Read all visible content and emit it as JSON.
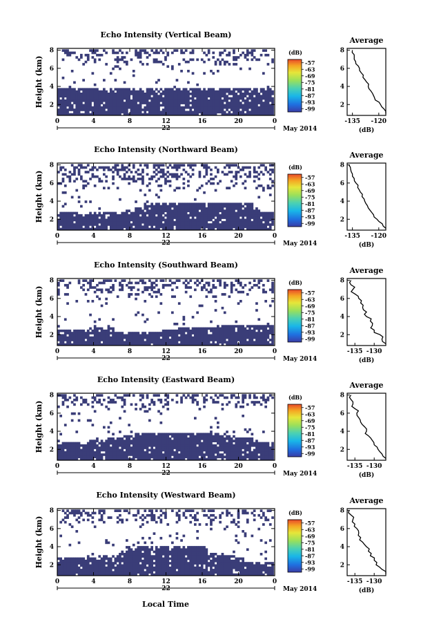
{
  "figure": {
    "xlabel": "Local Time",
    "date_label": "May 2014",
    "day_label": "22",
    "cbar_unit": "(dB)",
    "avg_title": "Average",
    "avg_xlabel": "(dB)"
  },
  "colors": {
    "echo": "#3a3d78",
    "background": "#ffffff",
    "colormap": [
      "#3a3da6",
      "#1f6fe0",
      "#19b6e8",
      "#4bd1b3",
      "#9be05a",
      "#e6e63a",
      "#f5a623",
      "#e84a2a"
    ]
  },
  "chart_data": [
    {
      "type": "heatmap",
      "title": "Echo Intensity (Vertical Beam)",
      "ylabel": "Height (km)",
      "xticks": [
        "0",
        "4",
        "8",
        "12",
        "16",
        "20",
        "0"
      ],
      "yticks": [
        "2",
        "4",
        "6",
        "8"
      ],
      "x_range_hours": [
        0,
        24
      ],
      "y_range_km": [
        0.8,
        8.2
      ],
      "colorbar_ticks": [
        "-57",
        "-63",
        "-69",
        "-75",
        "-81",
        "-87",
        "-93",
        "-99"
      ],
      "colorbar_range_db": [
        -102,
        -54
      ],
      "base_top_km": [
        3.9,
        3.9,
        3.9,
        3.9,
        3.9,
        3.9,
        3.9,
        3.9,
        3.9,
        3.9,
        3.9,
        3.9,
        3.9,
        3.9,
        3.9,
        3.9,
        3.9,
        3.9,
        3.9,
        3.9,
        3.9,
        3.9,
        3.9,
        3.9,
        3.9
      ],
      "upper_km": [
        6.3,
        8.2
      ],
      "average_profile": {
        "title": "Average",
        "xlabel": "(dB)",
        "xticks": [
          "-135",
          "-120"
        ],
        "yticks": [
          "2",
          "4",
          "6",
          "8"
        ],
        "x_range_db": [
          -138,
          -116
        ],
        "height_km": [
          1.0,
          1.5,
          2.0,
          2.5,
          3.0,
          3.5,
          4.0,
          4.5,
          5.0,
          5.5,
          6.0,
          6.5,
          7.0,
          7.5,
          8.0
        ],
        "value_db": [
          -116,
          -117,
          -119,
          -122,
          -123,
          -124.5,
          -126,
          -127,
          -129,
          -130,
          -131,
          -133,
          -134,
          -134,
          -135
        ]
      }
    },
    {
      "type": "heatmap",
      "title": "Echo Intensity (Northward Beam)",
      "ylabel": "Height (km)",
      "xticks": [
        "0",
        "4",
        "8",
        "12",
        "16",
        "20",
        "0"
      ],
      "yticks": [
        "2",
        "4",
        "6",
        "8"
      ],
      "x_range_hours": [
        0,
        24
      ],
      "y_range_km": [
        0.8,
        8.2
      ],
      "colorbar_ticks": [
        "-57",
        "-63",
        "-69",
        "-75",
        "-81",
        "-87",
        "-93",
        "-99"
      ],
      "colorbar_range_db": [
        -102,
        -54
      ],
      "base_top_km": [
        2.8,
        2.8,
        2.8,
        2.6,
        2.7,
        2.8,
        2.8,
        2.9,
        3.1,
        3.3,
        3.8,
        3.9,
        3.9,
        3.9,
        3.9,
        3.9,
        3.9,
        3.9,
        3.9,
        3.9,
        3.9,
        3.8,
        3.0,
        2.8,
        2.8
      ],
      "upper_km": [
        5.2,
        8.2
      ],
      "average_profile": {
        "title": "Average",
        "xlabel": "(dB)",
        "xticks": [
          "-135",
          "-120"
        ],
        "yticks": [
          "2",
          "4",
          "6",
          "8"
        ],
        "x_range_db": [
          -138,
          -116
        ],
        "height_km": [
          1.0,
          1.5,
          2.0,
          2.5,
          3.0,
          3.5,
          4.0,
          4.5,
          5.0,
          5.5,
          6.0,
          6.5,
          7.0,
          7.5,
          8.0
        ],
        "value_db": [
          -116,
          -118,
          -121,
          -123,
          -125,
          -126.5,
          -128,
          -129.5,
          -130.5,
          -132,
          -133,
          -134,
          -135,
          -136,
          -137
        ]
      }
    },
    {
      "type": "heatmap",
      "title": "Echo Intensity (Southward Beam)",
      "ylabel": "Height (km)",
      "xticks": [
        "0",
        "4",
        "8",
        "12",
        "16",
        "20",
        "0"
      ],
      "yticks": [
        "2",
        "4",
        "6",
        "8"
      ],
      "x_range_hours": [
        0,
        24
      ],
      "y_range_km": [
        0.8,
        8.2
      ],
      "colorbar_ticks": [
        "-57",
        "-63",
        "-69",
        "-75",
        "-81",
        "-87",
        "-93",
        "-99"
      ],
      "colorbar_range_db": [
        -102,
        -54
      ],
      "base_top_km": [
        2.6,
        2.6,
        2.6,
        2.6,
        2.7,
        2.7,
        2.7,
        2.4,
        2.3,
        2.2,
        2.3,
        2.4,
        2.6,
        2.8,
        2.9,
        2.9,
        2.9,
        2.9,
        3.0,
        3.0,
        3.0,
        3.0,
        3.0,
        3.0,
        3.0
      ],
      "upper_km": [
        6.2,
        8.2
      ],
      "average_profile": {
        "title": "Average",
        "xlabel": "(dB)",
        "xticks": [
          "-135",
          "-130"
        ],
        "yticks": [
          "2",
          "4",
          "6",
          "8"
        ],
        "x_range_db": [
          -137,
          -127
        ],
        "height_km": [
          1.0,
          1.5,
          2.0,
          2.5,
          3.0,
          3.5,
          4.0,
          4.5,
          5.0,
          5.5,
          6.0,
          6.5,
          7.0,
          7.5,
          8.0
        ],
        "value_db": [
          -127,
          -128,
          -128.5,
          -130,
          -130.5,
          -131,
          -132,
          -132,
          -133,
          -133.5,
          -134,
          -135,
          -135.5,
          -136,
          -136
        ]
      }
    },
    {
      "type": "heatmap",
      "title": "Echo Intensity (Eastward Beam)",
      "ylabel": "Height (km)",
      "xticks": [
        "0",
        "4",
        "8",
        "12",
        "16",
        "20",
        "0"
      ],
      "yticks": [
        "2",
        "4",
        "6",
        "8"
      ],
      "x_range_hours": [
        0,
        24
      ],
      "y_range_km": [
        0.8,
        8.2
      ],
      "colorbar_ticks": [
        "-57",
        "-63",
        "-69",
        "-75",
        "-81",
        "-87",
        "-93",
        "-99"
      ],
      "colorbar_range_db": [
        -102,
        -54
      ],
      "base_top_km": [
        2.6,
        2.7,
        2.8,
        2.9,
        3.0,
        3.1,
        3.2,
        3.3,
        3.5,
        3.7,
        3.8,
        3.8,
        3.8,
        3.8,
        3.8,
        3.8,
        3.8,
        3.8,
        3.7,
        3.5,
        3.3,
        3.2,
        3.0,
        2.8,
        2.8
      ],
      "upper_km": [
        6.3,
        8.2
      ],
      "average_profile": {
        "title": "Average",
        "xlabel": "(dB)",
        "xticks": [
          "-135",
          "-130"
        ],
        "yticks": [
          "2",
          "4",
          "6",
          "8"
        ],
        "x_range_db": [
          -137,
          -127
        ],
        "height_km": [
          1.0,
          1.5,
          2.0,
          2.5,
          3.0,
          3.5,
          4.0,
          4.5,
          5.0,
          5.5,
          6.0,
          6.5,
          7.0,
          7.5,
          8.0
        ],
        "value_db": [
          -127,
          -128,
          -129,
          -130,
          -130.5,
          -131.5,
          -132,
          -132.5,
          -133.5,
          -134,
          -134.5,
          -135,
          -135.5,
          -136,
          -136
        ]
      }
    },
    {
      "type": "heatmap",
      "title": "Echo Intensity (Westward Beam)",
      "ylabel": "Height (km)",
      "xticks": [
        "0",
        "4",
        "8",
        "12",
        "16",
        "20",
        "0"
      ],
      "yticks": [
        "2",
        "4",
        "6",
        "8"
      ],
      "x_range_hours": [
        0,
        24
      ],
      "y_range_km": [
        0.8,
        8.2
      ],
      "colorbar_ticks": [
        "-57",
        "-63",
        "-69",
        "-75",
        "-81",
        "-87",
        "-93",
        "-99"
      ],
      "colorbar_range_db": [
        -102,
        -54
      ],
      "base_top_km": [
        2.9,
        2.9,
        2.9,
        2.9,
        2.9,
        3.0,
        3.1,
        3.2,
        4.0,
        4.1,
        4.1,
        4.1,
        4.1,
        4.1,
        4.1,
        4.1,
        4.1,
        3.2,
        3.1,
        3.0,
        2.7,
        2.4,
        2.3,
        2.2,
        2.2
      ],
      "upper_km": [
        6.3,
        8.2
      ],
      "average_profile": {
        "title": "Average",
        "xlabel": "(dB)",
        "xticks": [
          "-135",
          "-130"
        ],
        "yticks": [
          "2",
          "4",
          "6",
          "8"
        ],
        "x_range_db": [
          -137,
          -127
        ],
        "height_km": [
          1.0,
          1.5,
          2.0,
          2.5,
          3.0,
          3.5,
          4.0,
          4.5,
          5.0,
          5.5,
          6.0,
          6.5,
          7.0,
          7.5,
          8.0
        ],
        "value_db": [
          -127,
          -128,
          -129.5,
          -130,
          -131,
          -131.5,
          -132,
          -133,
          -133.5,
          -134,
          -134.5,
          -135,
          -135.5,
          -136,
          -136.5
        ]
      }
    }
  ]
}
